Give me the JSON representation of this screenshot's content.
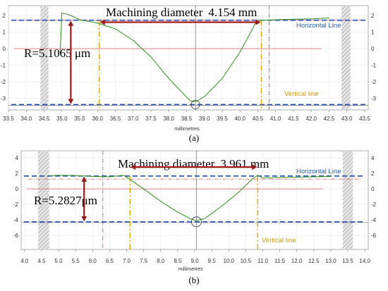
{
  "chart_data": [
    {
      "type": "line",
      "panel_label": "(a)",
      "xlabel": "millimetres",
      "xlim": [
        33.5,
        43.6
      ],
      "ylim": [
        -3.7,
        2.6
      ],
      "x_ticks": [
        "33.5",
        "34.0",
        "34.5",
        "35.0",
        "35.5",
        "36.0",
        "36.5",
        "37.0",
        "37.5",
        "38.0",
        "38.5",
        "39.0",
        "39.5",
        "40.0",
        "40.5",
        "41.0",
        "41.5",
        "42.0",
        "42.5",
        "43.0",
        "43.5"
      ],
      "y_ticks": [
        "2",
        "1",
        "0",
        "-1",
        "-2",
        "-3"
      ],
      "series": [
        {
          "color": "#3c9a2a",
          "x": [
            34.95,
            35.0,
            35.2,
            35.5,
            36.0,
            36.5,
            37.0,
            37.5,
            38.0,
            38.4,
            38.6,
            38.75,
            39.0,
            39.5,
            40.0,
            40.3,
            40.45,
            40.5,
            40.7,
            41.0,
            41.5,
            42.0,
            42.5
          ],
          "y": [
            -0.3,
            2.15,
            2.05,
            1.75,
            1.55,
            1.2,
            0.5,
            -0.5,
            -1.8,
            -2.7,
            -3.15,
            -3.2,
            -2.9,
            -1.8,
            -0.2,
            1.0,
            1.6,
            1.72,
            1.72,
            1.75,
            1.78,
            1.8,
            1.85
          ]
        }
      ],
      "horizontal_lines": [
        1.72,
        -3.38
      ],
      "vertical_lines": [
        36.05,
        40.6
      ],
      "annotations": {
        "diameter_label": "Machining diameter",
        "diameter_value": "4.154 mm",
        "radius_label": "R=5.1065 μm",
        "horizontal_line_label": "Horizontal Line",
        "vertical_line_label": "Vertical line"
      }
    },
    {
      "type": "line",
      "panel_label": "(b)",
      "xlabel": "millimetres",
      "xlim": [
        3.9,
        14.1
      ],
      "ylim": [
        -7.8,
        4.9
      ],
      "x_ticks": [
        "4.0",
        "4.5",
        "5.0",
        "5.5",
        "6.0",
        "6.5",
        "7.0",
        "7.5",
        "8.0",
        "8.5",
        "9.0",
        "9.5",
        "10.0",
        "10.5",
        "11.0",
        "11.5",
        "12.0",
        "12.5",
        "13.0",
        "13.5",
        "14.0"
      ],
      "y_ticks": [
        "4",
        "2",
        "0",
        "-2",
        "-4",
        "-6"
      ],
      "series": [
        {
          "color": "#3c9a2a",
          "x": [
            4.75,
            5.0,
            5.5,
            6.0,
            6.5,
            6.9,
            7.0,
            7.5,
            8.0,
            8.5,
            8.9,
            9.05,
            9.3,
            9.8,
            10.3,
            10.7,
            10.85,
            11.0,
            11.5,
            12.0,
            12.5,
            13.0
          ],
          "y": [
            1.7,
            1.75,
            1.72,
            1.6,
            1.55,
            1.75,
            1.5,
            0.0,
            -1.6,
            -3.0,
            -3.9,
            -4.1,
            -3.8,
            -2.2,
            -0.4,
            1.3,
            1.75,
            1.4,
            1.45,
            1.5,
            1.55,
            1.6
          ]
        }
      ],
      "horizontal_lines": [
        1.65,
        -4.25
      ],
      "vertical_lines": [
        7.1,
        10.85
      ],
      "annotations": {
        "diameter_label": "Machining diameter",
        "diameter_value": "3.961 mm",
        "radius_label": "R=5.2827μm",
        "horizontal_line_label": "Horizontal Line",
        "vertical_line_label": "Vertical line"
      }
    }
  ],
  "colors": {
    "profile": "#3c9a2a",
    "horizontal_line": "#1f4fb8",
    "vertical_line": "#e0a800",
    "arrow": "#a01818",
    "red_reference": "#d04040"
  }
}
